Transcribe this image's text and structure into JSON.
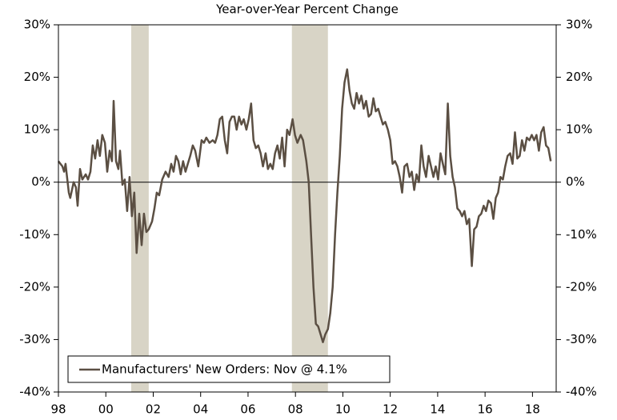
{
  "chart_data": {
    "type": "line",
    "title": "Year-over-Year Percent Change",
    "x": [
      1998.0,
      1998.17,
      1998.24,
      1998.3,
      1998.44,
      1998.5,
      1998.64,
      1998.74,
      1998.81,
      1998.91,
      1999.01,
      1999.15,
      1999.25,
      1999.35,
      1999.45,
      1999.55,
      1999.65,
      1999.75,
      1999.85,
      1999.96,
      2000.06,
      2000.16,
      2000.26,
      2000.33,
      2000.43,
      2000.53,
      2000.6,
      2000.7,
      2000.8,
      2000.9,
      2001.0,
      2001.1,
      2001.2,
      2001.3,
      2001.41,
      2001.51,
      2001.61,
      2001.71,
      2001.81,
      2001.95,
      2002.05,
      2002.15,
      2002.25,
      2002.38,
      2002.52,
      2002.65,
      2002.76,
      2002.86,
      2002.96,
      2003.06,
      2003.16,
      2003.26,
      2003.36,
      2003.46,
      2003.56,
      2003.67,
      2003.77,
      2003.9,
      2004.04,
      2004.14,
      2004.24,
      2004.37,
      2004.51,
      2004.61,
      2004.71,
      2004.81,
      2004.91,
      2005.02,
      2005.12,
      2005.22,
      2005.32,
      2005.42,
      2005.52,
      2005.62,
      2005.72,
      2005.82,
      2005.93,
      2006.03,
      2006.13,
      2006.23,
      2006.33,
      2006.43,
      2006.53,
      2006.63,
      2006.74,
      2006.84,
      2006.94,
      2007.04,
      2007.14,
      2007.24,
      2007.34,
      2007.44,
      2007.54,
      2007.65,
      2007.75,
      2007.88,
      2007.98,
      2008.08,
      2008.22,
      2008.32,
      2008.46,
      2008.56,
      2008.66,
      2008.76,
      2008.86,
      2008.96,
      2009.06,
      2009.16,
      2009.26,
      2009.37,
      2009.47,
      2009.57,
      2009.67,
      2009.77,
      2009.87,
      2009.97,
      2010.07,
      2010.18,
      2010.28,
      2010.38,
      2010.48,
      2010.58,
      2010.68,
      2010.78,
      2010.88,
      2010.98,
      2011.09,
      2011.19,
      2011.29,
      2011.39,
      2011.49,
      2011.59,
      2011.69,
      2011.79,
      2011.9,
      2012.0,
      2012.1,
      2012.2,
      2012.3,
      2012.4,
      2012.5,
      2012.6,
      2012.71,
      2012.81,
      2012.91,
      2013.01,
      2013.11,
      2013.21,
      2013.31,
      2013.41,
      2013.51,
      2013.62,
      2013.72,
      2013.82,
      2013.92,
      2014.02,
      2014.12,
      2014.22,
      2014.32,
      2014.43,
      2014.53,
      2014.63,
      2014.73,
      2014.83,
      2014.93,
      2015.03,
      2015.13,
      2015.23,
      2015.33,
      2015.44,
      2015.54,
      2015.64,
      2015.74,
      2015.84,
      2015.94,
      2016.04,
      2016.14,
      2016.25,
      2016.35,
      2016.45,
      2016.55,
      2016.65,
      2016.75,
      2016.85,
      2016.95,
      2017.06,
      2017.16,
      2017.26,
      2017.36,
      2017.46,
      2017.56,
      2017.66,
      2017.76,
      2017.87,
      2017.97,
      2018.07,
      2018.17,
      2018.27,
      2018.37,
      2018.47,
      2018.57,
      2018.67,
      2018.77
    ],
    "series": [
      {
        "name": "Manufacturers' New Orders: Nov @ 4.1%",
        "color": "#5b4f43",
        "values": [
          4,
          3,
          2,
          3.5,
          -2,
          -3,
          0,
          -1,
          -4.5,
          2.5,
          0.5,
          1.5,
          0.5,
          2,
          7,
          4.5,
          8,
          5,
          9,
          7.5,
          2,
          6,
          4,
          15.5,
          4,
          2.5,
          6,
          -0.5,
          0.5,
          -5.5,
          1,
          -6.5,
          -2,
          -13.5,
          -6,
          -12,
          -6,
          -9.5,
          -9,
          -7.5,
          -5,
          -2,
          -2.5,
          0.5,
          2,
          1,
          3.5,
          2,
          5,
          4,
          1.5,
          4,
          2,
          3.5,
          5,
          7,
          6,
          3,
          8,
          7.5,
          8.5,
          7.5,
          8,
          7.5,
          9,
          12,
          12.5,
          8,
          5.5,
          11.5,
          12.5,
          12.5,
          10,
          12.5,
          11,
          12,
          10,
          12,
          15,
          8,
          6.5,
          7,
          5.5,
          3,
          5.5,
          2.5,
          3.5,
          2.5,
          5.5,
          7,
          4.5,
          8.5,
          3,
          10,
          9,
          12,
          9,
          7.5,
          9,
          8,
          4,
          0,
          -10,
          -20,
          -27,
          -27.5,
          -29,
          -30.5,
          -29,
          -28,
          -25,
          -20,
          -10,
          -2,
          5,
          14,
          19,
          21.5,
          17.5,
          15,
          14,
          17,
          15,
          16.5,
          14,
          15.5,
          12.5,
          13,
          16,
          13.5,
          14,
          12.5,
          11,
          11.5,
          10,
          8,
          3.5,
          4,
          3,
          1,
          -2,
          3,
          3.5,
          1,
          2,
          -1.5,
          1.5,
          0,
          7,
          3,
          1,
          5,
          3,
          1,
          3,
          0.5,
          5.5,
          3.5,
          1.5,
          15,
          5,
          1,
          -1,
          -5,
          -5.5,
          -6.5,
          -5.5,
          -8,
          -7,
          -16,
          -9,
          -8.5,
          -6.5,
          -6,
          -4.5,
          -5.5,
          -3.5,
          -4,
          -7,
          -3,
          -2,
          1,
          0.5,
          3,
          5,
          5.5,
          3.5,
          9.5,
          4.5,
          5,
          8,
          6,
          8.5,
          8,
          9,
          8,
          9,
          6,
          9.5,
          10.5,
          7,
          6.5,
          4
        ]
      }
    ],
    "recessions": [
      {
        "start": 2001.07,
        "end": 2001.81
      },
      {
        "start": 2007.85,
        "end": 2009.37
      }
    ],
    "recession_color": "#d8d4c6",
    "hline": 0,
    "xlim": [
      1998,
      2019
    ],
    "xticks": [
      {
        "value": 1998,
        "label": "98"
      },
      {
        "value": 2000,
        "label": "00"
      },
      {
        "value": 2002,
        "label": "02"
      },
      {
        "value": 2004,
        "label": "04"
      },
      {
        "value": 2006,
        "label": "06"
      },
      {
        "value": 2008,
        "label": "08"
      },
      {
        "value": 2010,
        "label": "10"
      },
      {
        "value": 2012,
        "label": "12"
      },
      {
        "value": 2014,
        "label": "14"
      },
      {
        "value": 2016,
        "label": "16"
      },
      {
        "value": 2018,
        "label": "18"
      }
    ],
    "ylim": [
      -40,
      30
    ],
    "yticks": [
      {
        "value": -40,
        "label": "-40%"
      },
      {
        "value": -30,
        "label": "-30%"
      },
      {
        "value": -20,
        "label": "-20%"
      },
      {
        "value": -10,
        "label": "-10%"
      },
      {
        "value": 0,
        "label": "0%"
      },
      {
        "value": 10,
        "label": "10%"
      },
      {
        "value": 20,
        "label": "20%"
      },
      {
        "value": 30,
        "label": "30%"
      }
    ],
    "y2lim": [
      -40,
      30
    ],
    "y2ticks": [
      {
        "value": -40,
        "label": "-40%"
      },
      {
        "value": -30,
        "label": "-30%"
      },
      {
        "value": -20,
        "label": "-20%"
      },
      {
        "value": -10,
        "label": "-10%"
      },
      {
        "value": 0,
        "label": "0%"
      },
      {
        "value": 10,
        "label": "10%"
      },
      {
        "value": 20,
        "label": "20%"
      },
      {
        "value": 30,
        "label": "30%"
      }
    ],
    "legend": "lower-left"
  }
}
